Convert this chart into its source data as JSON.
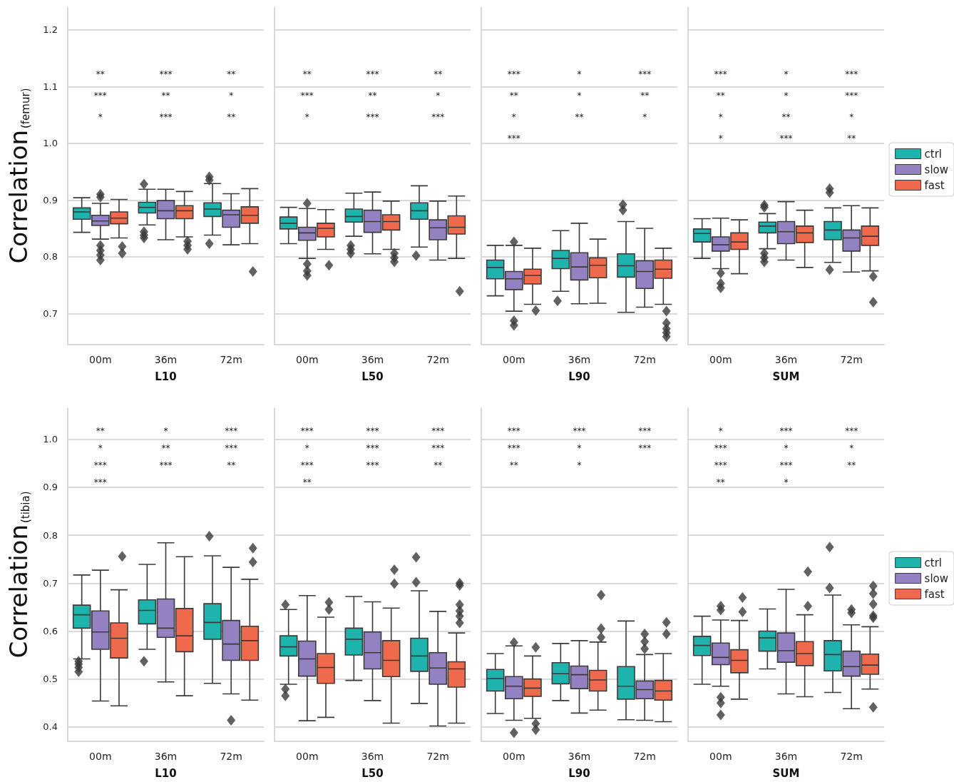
{
  "chart_data": [
    {
      "type": "box",
      "categories": [
        "00m",
        "36m",
        "72m"
      ],
      "xlabel": "L10",
      "ylabel": "Correlation$_{(femur)}$",
      "ylim": [
        0.645,
        1.24
      ],
      "yticks": [
        0.7,
        0.8,
        0.9,
        {
          "value": 1,
          "label": "1.0"
        },
        1.1,
        1.2
      ],
      "grid": "y",
      "legend": false,
      "marker": "diamond",
      "series": [
        {
          "color": "#1fb3ad",
          "boxes": [
            {
              "low": 0.843,
              "q1": 0.866,
              "median": 0.879,
              "q3": 0.886,
              "high": 0.904
            },
            {
              "low": 0.856,
              "q1": 0.877,
              "median": 0.887,
              "q3": 0.896,
              "high": 0.919,
              "outliers": [
                0.928,
                0.844,
                0.838,
                0.833
              ]
            },
            {
              "low": 0.838,
              "q1": 0.871,
              "median": 0.884,
              "q3": 0.895,
              "high": 0.929,
              "outliers": [
                0.941,
                0.935,
                0.823
              ]
            }
          ]
        },
        {
          "color": "#9381c1",
          "boxes": [
            {
              "low": 0.831,
              "q1": 0.855,
              "median": 0.863,
              "q3": 0.873,
              "high": 0.894,
              "outliers": [
                0.91,
                0.905,
                0.82,
                0.811,
                0.803,
                0.794
              ]
            },
            {
              "low": 0.83,
              "q1": 0.867,
              "median": 0.881,
              "q3": 0.899,
              "high": 0.919
            },
            {
              "low": 0.821,
              "q1": 0.852,
              "median": 0.874,
              "q3": 0.882,
              "high": 0.911
            }
          ]
        },
        {
          "color": "#ef6a4c",
          "boxes": [
            {
              "low": 0.833,
              "q1": 0.858,
              "median": 0.868,
              "q3": 0.879,
              "high": 0.901,
              "outliers": [
                0.818,
                0.806
              ]
            },
            {
              "low": 0.835,
              "q1": 0.867,
              "median": 0.881,
              "q3": 0.89,
              "high": 0.915,
              "outliers": [
                0.827,
                0.82,
                0.813
              ]
            },
            {
              "low": 0.823,
              "q1": 0.859,
              "median": 0.873,
              "q3": 0.888,
              "high": 0.92,
              "outliers": [
                0.774
              ]
            }
          ]
        }
      ],
      "annotations": [
        "**",
        "***",
        "**",
        "***",
        "**",
        "*",
        "*",
        "***",
        "**"
      ]
    },
    {
      "type": "box",
      "categories": [
        "00m",
        "36m",
        "72m"
      ],
      "xlabel": "L50",
      "ylim": [
        0.645,
        1.24
      ],
      "yticks": [
        0.7,
        0.8,
        0.9,
        1,
        1.1,
        1.2
      ],
      "grid": "y",
      "legend": false,
      "marker": "diamond",
      "tick_labels": "x",
      "series": [
        {
          "color": "#1fb3ad",
          "boxes": [
            {
              "low": 0.823,
              "q1": 0.849,
              "median": 0.859,
              "q3": 0.87,
              "high": 0.887
            },
            {
              "low": 0.836,
              "q1": 0.861,
              "median": 0.871,
              "q3": 0.884,
              "high": 0.912,
              "outliers": [
                0.82,
                0.813,
                0.806
              ]
            },
            {
              "low": 0.817,
              "q1": 0.866,
              "median": 0.881,
              "q3": 0.895,
              "high": 0.925,
              "outliers": [
                0.802
              ]
            }
          ]
        },
        {
          "color": "#9381c1",
          "boxes": [
            {
              "low": 0.797,
              "q1": 0.829,
              "median": 0.842,
              "q3": 0.852,
              "high": 0.885,
              "outliers": [
                0.894,
                0.787,
                0.775,
                0.767
              ]
            },
            {
              "low": 0.805,
              "q1": 0.843,
              "median": 0.862,
              "q3": 0.882,
              "high": 0.914
            },
            {
              "low": 0.794,
              "q1": 0.83,
              "median": 0.851,
              "q3": 0.865,
              "high": 0.898
            }
          ]
        },
        {
          "color": "#ef6a4c",
          "boxes": [
            {
              "low": 0.813,
              "q1": 0.835,
              "median": 0.85,
              "q3": 0.859,
              "high": 0.883,
              "outliers": [
                0.785
              ]
            },
            {
              "low": 0.813,
              "q1": 0.847,
              "median": 0.862,
              "q3": 0.874,
              "high": 0.898,
              "outliers": [
                0.806,
                0.798,
                0.791
              ]
            },
            {
              "low": 0.797,
              "q1": 0.84,
              "median": 0.852,
              "q3": 0.872,
              "high": 0.907,
              "outliers": [
                0.739
              ]
            }
          ]
        }
      ],
      "annotations": [
        "**",
        "***",
        "**",
        "***",
        "**",
        "*",
        "*",
        "***",
        "***"
      ]
    },
    {
      "type": "box",
      "categories": [
        "00m",
        "36m",
        "72m"
      ],
      "xlabel": "L90",
      "ylim": [
        0.645,
        1.24
      ],
      "yticks": [
        0.7,
        0.8,
        0.9,
        1,
        1.1,
        1.2
      ],
      "grid": "y",
      "legend": false,
      "marker": "diamond",
      "tick_labels": "x",
      "series": [
        {
          "color": "#1fb3ad",
          "boxes": [
            {
              "low": 0.731,
              "q1": 0.761,
              "median": 0.781,
              "q3": 0.794,
              "high": 0.82
            },
            {
              "low": 0.739,
              "q1": 0.779,
              "median": 0.797,
              "q3": 0.811,
              "high": 0.846,
              "outliers": [
                0.722
              ]
            },
            {
              "low": 0.702,
              "q1": 0.764,
              "median": 0.784,
              "q3": 0.805,
              "high": 0.862,
              "outliers": [
                0.892,
                0.882
              ]
            }
          ]
        },
        {
          "color": "#9381c1",
          "boxes": [
            {
              "low": 0.704,
              "q1": 0.742,
              "median": 0.761,
              "q3": 0.774,
              "high": 0.82,
              "outliers": [
                0.826,
                0.687,
                0.679
              ]
            },
            {
              "low": 0.717,
              "q1": 0.759,
              "median": 0.782,
              "q3": 0.807,
              "high": 0.859
            },
            {
              "low": 0.711,
              "q1": 0.744,
              "median": 0.774,
              "q3": 0.793,
              "high": 0.85
            }
          ]
        },
        {
          "color": "#ef6a4c",
          "boxes": [
            {
              "low": 0.716,
              "q1": 0.752,
              "median": 0.767,
              "q3": 0.778,
              "high": 0.815,
              "outliers": [
                0.705
              ]
            },
            {
              "low": 0.718,
              "q1": 0.763,
              "median": 0.785,
              "q3": 0.798,
              "high": 0.831
            },
            {
              "low": 0.716,
              "q1": 0.762,
              "median": 0.778,
              "q3": 0.794,
              "high": 0.815,
              "outliers": [
                0.704,
                0.683,
                0.673,
                0.666,
                0.659
              ]
            }
          ]
        }
      ],
      "annotations": [
        "***",
        "*",
        "***",
        "**",
        "*",
        "**",
        "*",
        "**",
        "*",
        "***"
      ]
    },
    {
      "type": "box",
      "categories": [
        "00m",
        "36m",
        "72m"
      ],
      "xlabel": "SUM",
      "ylim": [
        0.645,
        1.24
      ],
      "yticks": [
        0.7,
        0.8,
        0.9,
        1,
        1.1,
        1.2
      ],
      "grid": "y",
      "legend": "right",
      "marker": "diamond",
      "tick_labels": "x",
      "series": [
        {
          "name": "ctrl",
          "color": "#1fb3ad",
          "boxes": [
            {
              "low": 0.797,
              "q1": 0.826,
              "median": 0.841,
              "q3": 0.849,
              "high": 0.867
            },
            {
              "low": 0.814,
              "q1": 0.842,
              "median": 0.854,
              "q3": 0.861,
              "high": 0.876,
              "outliers": [
                0.891,
                0.887,
                0.806,
                0.798,
                0.791
              ]
            },
            {
              "low": 0.79,
              "q1": 0.83,
              "median": 0.847,
              "q3": 0.862,
              "high": 0.886,
              "outliers": [
                0.92,
                0.913,
                0.777
              ]
            }
          ]
        },
        {
          "name": "slow",
          "color": "#9381c1",
          "boxes": [
            {
              "low": 0.779,
              "q1": 0.81,
              "median": 0.821,
              "q3": 0.835,
              "high": 0.868,
              "outliers": [
                0.771,
                0.753,
                0.745
              ]
            },
            {
              "low": 0.794,
              "q1": 0.823,
              "median": 0.844,
              "q3": 0.862,
              "high": 0.897
            },
            {
              "low": 0.773,
              "q1": 0.81,
              "median": 0.833,
              "q3": 0.847,
              "high": 0.89
            }
          ]
        },
        {
          "name": "fast",
          "color": "#ef6a4c",
          "boxes": [
            {
              "low": 0.77,
              "q1": 0.813,
              "median": 0.826,
              "q3": 0.842,
              "high": 0.865
            },
            {
              "low": 0.781,
              "q1": 0.825,
              "median": 0.842,
              "q3": 0.854,
              "high": 0.882
            },
            {
              "low": 0.775,
              "q1": 0.82,
              "median": 0.836,
              "q3": 0.854,
              "high": 0.886,
              "outliers": [
                0.765,
                0.72
              ]
            }
          ]
        }
      ],
      "annotations": [
        "***",
        "*",
        "***",
        "**",
        "*",
        "***",
        "*",
        "**",
        "*",
        "*",
        "***",
        "**"
      ]
    },
    {
      "type": "box",
      "categories": [
        "00m",
        "36m",
        "72m"
      ],
      "xlabel": "L10",
      "ylabel": "Correlation$_{(tibia)}$",
      "ylim": [
        0.37,
        1.065
      ],
      "yticks": [
        0.4,
        0.5,
        0.6,
        0.7,
        0.8,
        0.9,
        {
          "value": 1,
          "label": "1.0"
        }
      ],
      "grid": "y",
      "legend": false,
      "marker": "diamond",
      "series": [
        {
          "color": "#1fb3ad",
          "boxes": [
            {
              "low": 0.542,
              "q1": 0.606,
              "median": 0.634,
              "q3": 0.654,
              "high": 0.717,
              "outliers": [
                0.537,
                0.531,
                0.524,
                0.515
              ]
            },
            {
              "low": 0.562,
              "q1": 0.615,
              "median": 0.643,
              "q3": 0.665,
              "high": 0.739,
              "outliers": [
                0.537
              ]
            },
            {
              "low": 0.491,
              "q1": 0.583,
              "median": 0.618,
              "q3": 0.657,
              "high": 0.757,
              "outliers": [
                0.798
              ]
            }
          ]
        },
        {
          "color": "#9381c1",
          "boxes": [
            {
              "low": 0.454,
              "q1": 0.562,
              "median": 0.598,
              "q3": 0.642,
              "high": 0.727
            },
            {
              "low": 0.494,
              "q1": 0.587,
              "median": 0.606,
              "q3": 0.667,
              "high": 0.784
            },
            {
              "low": 0.469,
              "q1": 0.539,
              "median": 0.573,
              "q3": 0.622,
              "high": 0.733,
              "outliers": [
                0.414
              ]
            }
          ]
        },
        {
          "color": "#ef6a4c",
          "boxes": [
            {
              "low": 0.444,
              "q1": 0.544,
              "median": 0.585,
              "q3": 0.617,
              "high": 0.686,
              "outliers": [
                0.756
              ]
            },
            {
              "low": 0.465,
              "q1": 0.557,
              "median": 0.59,
              "q3": 0.647,
              "high": 0.755
            },
            {
              "low": 0.456,
              "q1": 0.539,
              "median": 0.58,
              "q3": 0.61,
              "high": 0.708,
              "outliers": [
                0.773,
                0.744
              ]
            }
          ]
        }
      ],
      "annotations": [
        "**",
        "*",
        "***",
        "*",
        "**",
        "***",
        "***",
        "***",
        "**",
        "***"
      ]
    },
    {
      "type": "box",
      "categories": [
        "00m",
        "36m",
        "72m"
      ],
      "xlabel": "L50",
      "ylim": [
        0.37,
        1.065
      ],
      "yticks": [
        0.4,
        0.5,
        0.6,
        0.7,
        0.8,
        0.9,
        1
      ],
      "grid": "y",
      "legend": false,
      "marker": "diamond",
      "tick_labels": "x",
      "series": [
        {
          "color": "#1fb3ad",
          "boxes": [
            {
              "low": 0.489,
              "q1": 0.548,
              "median": 0.567,
              "q3": 0.59,
              "high": 0.645,
              "outliers": [
                0.655,
                0.479,
                0.465
              ]
            },
            {
              "low": 0.497,
              "q1": 0.55,
              "median": 0.583,
              "q3": 0.606,
              "high": 0.672
            },
            {
              "low": 0.449,
              "q1": 0.516,
              "median": 0.548,
              "q3": 0.585,
              "high": 0.684,
              "outliers": [
                0.754,
                0.702
              ]
            }
          ]
        },
        {
          "color": "#9381c1",
          "boxes": [
            {
              "low": 0.413,
              "q1": 0.506,
              "median": 0.542,
              "q3": 0.579,
              "high": 0.674
            },
            {
              "low": 0.455,
              "q1": 0.521,
              "median": 0.555,
              "q3": 0.598,
              "high": 0.661
            },
            {
              "low": 0.402,
              "q1": 0.489,
              "median": 0.523,
              "q3": 0.555,
              "high": 0.641
            }
          ]
        },
        {
          "color": "#ef6a4c",
          "boxes": [
            {
              "low": 0.42,
              "q1": 0.491,
              "median": 0.524,
              "q3": 0.553,
              "high": 0.629,
              "outliers": [
                0.66,
                0.645
              ]
            },
            {
              "low": 0.408,
              "q1": 0.505,
              "median": 0.539,
              "q3": 0.58,
              "high": 0.648,
              "outliers": [
                0.728,
                0.699
              ]
            },
            {
              "low": 0.408,
              "q1": 0.483,
              "median": 0.521,
              "q3": 0.536,
              "high": 0.596,
              "outliers": [
                0.7,
                0.695,
                0.655,
                0.642,
                0.631,
                0.617
              ]
            }
          ]
        }
      ],
      "annotations": [
        "***",
        "***",
        "***",
        "*",
        "***",
        "***",
        "***",
        "***",
        "**",
        "**"
      ]
    },
    {
      "type": "box",
      "categories": [
        "00m",
        "36m",
        "72m"
      ],
      "xlabel": "L90",
      "ylim": [
        0.37,
        1.065
      ],
      "yticks": [
        0.4,
        0.5,
        0.6,
        0.7,
        0.8,
        0.9,
        1
      ],
      "grid": "y",
      "legend": false,
      "marker": "diamond",
      "tick_labels": "x",
      "series": [
        {
          "color": "#1fb3ad",
          "boxes": [
            {
              "low": 0.428,
              "q1": 0.475,
              "median": 0.501,
              "q3": 0.52,
              "high": 0.553
            },
            {
              "low": 0.455,
              "q1": 0.49,
              "median": 0.511,
              "q3": 0.534,
              "high": 0.574
            },
            {
              "low": 0.415,
              "q1": 0.458,
              "median": 0.485,
              "q3": 0.526,
              "high": 0.621
            }
          ]
        },
        {
          "color": "#9381c1",
          "boxes": [
            {
              "low": 0.414,
              "q1": 0.459,
              "median": 0.485,
              "q3": 0.505,
              "high": 0.569,
              "outliers": [
                0.576,
                0.388
              ]
            },
            {
              "low": 0.429,
              "q1": 0.48,
              "median": 0.509,
              "q3": 0.527,
              "high": 0.58
            },
            {
              "low": 0.414,
              "q1": 0.459,
              "median": 0.478,
              "q3": 0.496,
              "high": 0.551,
              "outliers": [
                0.594,
                0.578,
                0.563
              ]
            }
          ]
        },
        {
          "color": "#ef6a4c",
          "boxes": [
            {
              "low": 0.418,
              "q1": 0.464,
              "median": 0.481,
              "q3": 0.5,
              "high": 0.548,
              "outliers": [
                0.566,
                0.407,
                0.394
              ]
            },
            {
              "low": 0.435,
              "q1": 0.475,
              "median": 0.498,
              "q3": 0.518,
              "high": 0.577,
              "outliers": [
                0.675,
                0.605,
                0.587
              ]
            },
            {
              "low": 0.411,
              "q1": 0.456,
              "median": 0.475,
              "q3": 0.497,
              "high": 0.553,
              "outliers": [
                0.618,
                0.594
              ]
            }
          ]
        }
      ],
      "annotations": [
        "***",
        "***",
        "***",
        "***",
        "*",
        "***",
        "**",
        "*"
      ]
    },
    {
      "type": "box",
      "categories": [
        "00m",
        "36m",
        "72m"
      ],
      "xlabel": "SUM",
      "ylim": [
        0.37,
        1.065
      ],
      "yticks": [
        0.4,
        0.5,
        0.6,
        0.7,
        0.8,
        0.9,
        1
      ],
      "grid": "y",
      "legend": "right",
      "marker": "diamond",
      "tick_labels": "x",
      "series": [
        {
          "name": "ctrl",
          "color": "#1fb3ad",
          "boxes": [
            {
              "low": 0.489,
              "q1": 0.549,
              "median": 0.57,
              "q3": 0.589,
              "high": 0.631
            },
            {
              "low": 0.521,
              "q1": 0.558,
              "median": 0.586,
              "q3": 0.6,
              "high": 0.646
            },
            {
              "low": 0.472,
              "q1": 0.517,
              "median": 0.551,
              "q3": 0.58,
              "high": 0.675,
              "outliers": [
                0.775,
                0.69
              ]
            }
          ]
        },
        {
          "name": "slow",
          "color": "#9381c1",
          "boxes": [
            {
              "low": 0.485,
              "q1": 0.53,
              "median": 0.545,
              "q3": 0.575,
              "high": 0.623,
              "outliers": [
                0.652,
                0.644,
                0.462,
                0.45,
                0.425
              ]
            },
            {
              "low": 0.469,
              "q1": 0.535,
              "median": 0.559,
              "q3": 0.596,
              "high": 0.687
            },
            {
              "low": 0.438,
              "q1": 0.506,
              "median": 0.526,
              "q3": 0.558,
              "high": 0.613,
              "outliers": [
                0.645,
                0.638
              ]
            }
          ]
        },
        {
          "name": "fast",
          "color": "#ef6a4c",
          "boxes": [
            {
              "low": 0.458,
              "q1": 0.513,
              "median": 0.539,
              "q3": 0.561,
              "high": 0.622,
              "outliers": [
                0.67,
                0.64
              ]
            },
            {
              "low": 0.463,
              "q1": 0.528,
              "median": 0.553,
              "q3": 0.578,
              "high": 0.634,
              "outliers": [
                0.724,
                0.652
              ]
            },
            {
              "low": 0.479,
              "q1": 0.51,
              "median": 0.529,
              "q3": 0.552,
              "high": 0.609,
              "outliers": [
                0.694,
                0.678,
                0.656,
                0.632,
                0.628,
                0.441
              ]
            }
          ]
        }
      ],
      "annotations": [
        "*",
        "***",
        "***",
        "***",
        "*",
        "*",
        "***",
        "***",
        "**",
        "**",
        "*"
      ]
    }
  ]
}
